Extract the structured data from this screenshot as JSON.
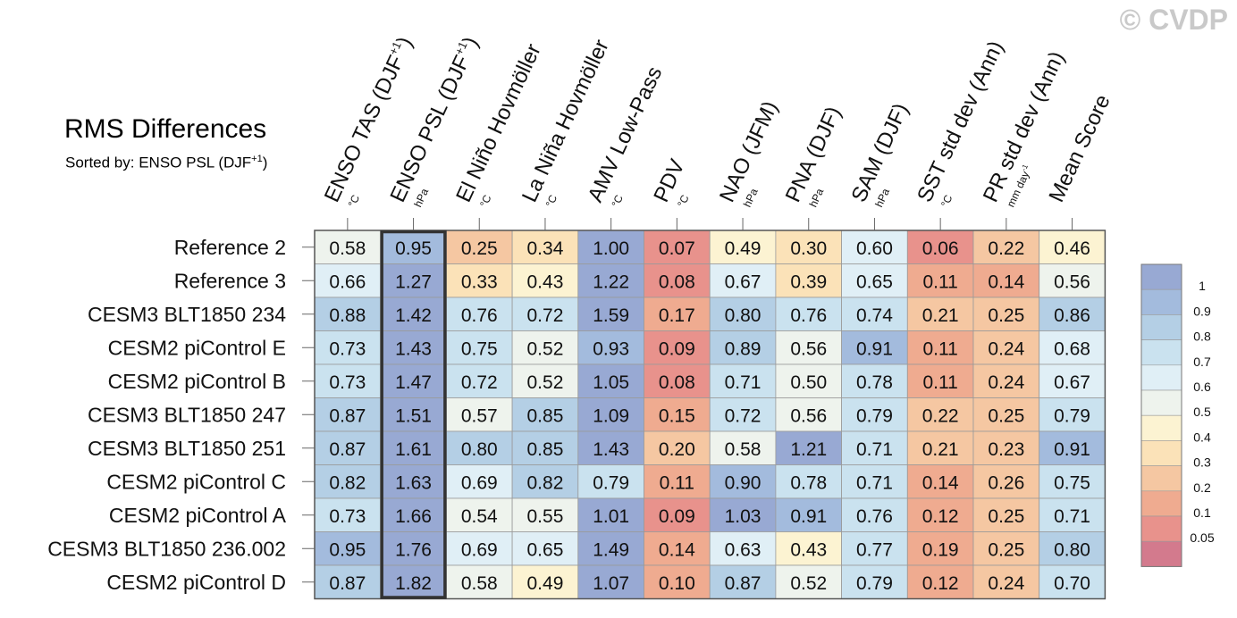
{
  "watermark": "© CVDP",
  "chart_data": {
    "type": "heatmap",
    "title": "RMS Differences",
    "subtitle": "Sorted by: ENSO PSL (DJF",
    "subtitle_sup": "+1",
    "subtitle_end": ")",
    "sorted_column_index": 1,
    "columns": [
      {
        "label": "ENSO TAS (DJF",
        "sup": "+1",
        "end": ")",
        "unit": "°C"
      },
      {
        "label": "ENSO PSL (DJF",
        "sup": "+1",
        "end": ")",
        "unit": "hPa"
      },
      {
        "label": "El Niño Hovmöller",
        "unit": "°C"
      },
      {
        "label": "La Niña Hovmöller",
        "unit": "°C"
      },
      {
        "label": "AMV Low-Pass",
        "unit": "°C"
      },
      {
        "label": "PDV",
        "unit": "°C"
      },
      {
        "label": "NAO (JFM)",
        "unit": "hPa"
      },
      {
        "label": "PNA (DJF)",
        "unit": "hPa"
      },
      {
        "label": "SAM (DJF)",
        "unit": "hPa"
      },
      {
        "label": "SST std dev (Ann)",
        "unit": "°C"
      },
      {
        "label": "PR std dev (Ann)",
        "unit": "mm day",
        "unit_sup": "-1"
      },
      {
        "label": "Mean Score",
        "unit": ""
      }
    ],
    "rows": [
      "Reference 2",
      "Reference 3",
      "CESM3 BLT1850 234",
      "CESM2 piControl E",
      "CESM2 piControl B",
      "CESM3 BLT1850 247",
      "CESM3 BLT1850 251",
      "CESM2 piControl C",
      "CESM2 piControl A",
      "CESM3 BLT1850 236.002",
      "CESM2 piControl D"
    ],
    "values": [
      [
        "0.58",
        "0.95",
        "0.25",
        "0.34",
        "1.00",
        "0.07",
        "0.49",
        "0.30",
        "0.60",
        "0.06",
        "0.22",
        "0.46"
      ],
      [
        "0.66",
        "1.27",
        "0.33",
        "0.43",
        "1.22",
        "0.08",
        "0.67",
        "0.39",
        "0.65",
        "0.11",
        "0.14",
        "0.56"
      ],
      [
        "0.88",
        "1.42",
        "0.76",
        "0.72",
        "1.59",
        "0.17",
        "0.80",
        "0.76",
        "0.74",
        "0.21",
        "0.25",
        "0.86"
      ],
      [
        "0.73",
        "1.43",
        "0.75",
        "0.52",
        "0.93",
        "0.09",
        "0.89",
        "0.56",
        "0.91",
        "0.11",
        "0.24",
        "0.68"
      ],
      [
        "0.73",
        "1.47",
        "0.72",
        "0.52",
        "1.05",
        "0.08",
        "0.71",
        "0.50",
        "0.78",
        "0.11",
        "0.24",
        "0.67"
      ],
      [
        "0.87",
        "1.51",
        "0.57",
        "0.85",
        "1.09",
        "0.15",
        "0.72",
        "0.56",
        "0.79",
        "0.22",
        "0.25",
        "0.79"
      ],
      [
        "0.87",
        "1.61",
        "0.80",
        "0.85",
        "1.43",
        "0.20",
        "0.58",
        "1.21",
        "0.71",
        "0.21",
        "0.23",
        "0.91"
      ],
      [
        "0.82",
        "1.63",
        "0.69",
        "0.82",
        "0.79",
        "0.11",
        "0.90",
        "0.78",
        "0.71",
        "0.14",
        "0.26",
        "0.75"
      ],
      [
        "0.73",
        "1.66",
        "0.54",
        "0.55",
        "1.01",
        "0.09",
        "1.03",
        "0.91",
        "0.76",
        "0.12",
        "0.25",
        "0.71"
      ],
      [
        "0.95",
        "1.76",
        "0.69",
        "0.65",
        "1.49",
        "0.14",
        "0.63",
        "0.43",
        "0.77",
        "0.19",
        "0.25",
        "0.80"
      ],
      [
        "0.87",
        "1.82",
        "0.58",
        "0.49",
        "1.07",
        "0.10",
        "0.87",
        "0.52",
        "0.79",
        "0.12",
        "0.24",
        "0.70"
      ]
    ],
    "colorbar": {
      "labels": [
        "1",
        "0.9",
        "0.8",
        "0.7",
        "0.6",
        "0.5",
        "0.4",
        "0.3",
        "0.2",
        "0.1",
        "0.05"
      ],
      "bounds": [
        0.05,
        0.1,
        0.2,
        0.3,
        0.4,
        0.5,
        0.6,
        0.7,
        0.8,
        0.9,
        1.0
      ],
      "colors": [
        "#d37a8d",
        "#e8928c",
        "#efab90",
        "#f5c7a2",
        "#fbe2b8",
        "#fcf3d2",
        "#eef3ed",
        "#e0eff6",
        "#cae2ef",
        "#b4cfe5",
        "#a3bbdd",
        "#98a9d3"
      ]
    }
  }
}
